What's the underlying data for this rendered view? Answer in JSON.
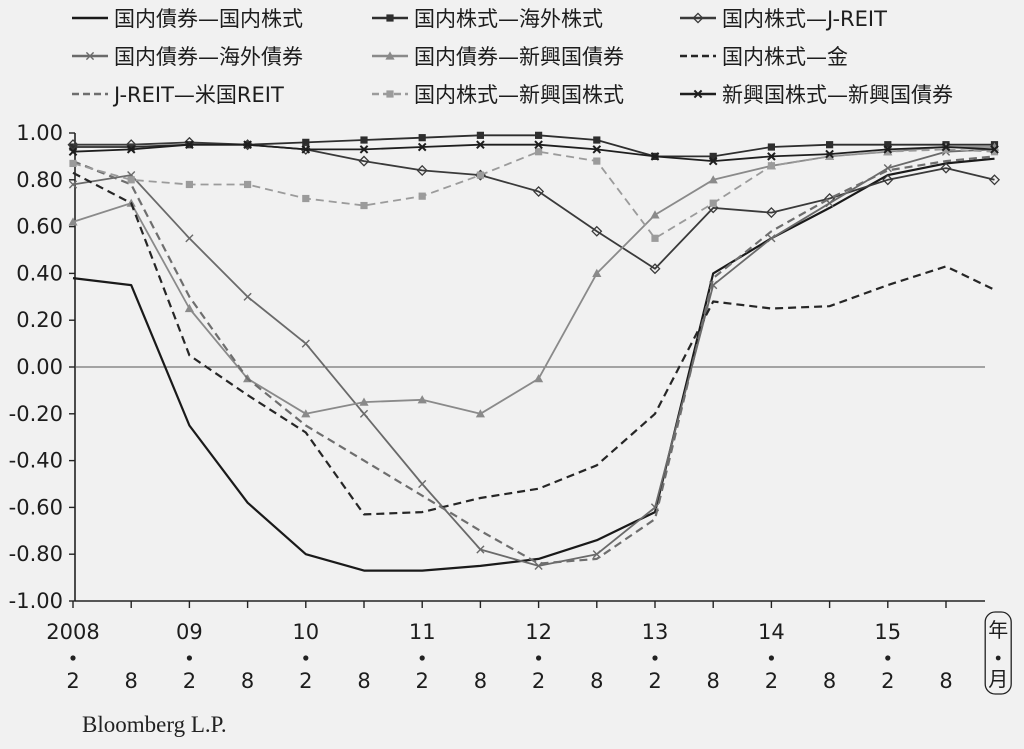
{
  "chart_data": {
    "type": "line",
    "title": "",
    "xlabel": "",
    "ylabel": "",
    "ylim": [
      -1.0,
      1.0
    ],
    "yticks": [
      "1.00",
      "0.80",
      "0.60",
      "0.40",
      "0.20",
      "0.00",
      "-0.20",
      "-0.40",
      "-0.60",
      "-0.80",
      "-1.00"
    ],
    "xticks": [
      {
        "year": "2008",
        "month": "2"
      },
      {
        "year": "",
        "month": "8"
      },
      {
        "year": "09",
        "month": "2"
      },
      {
        "year": "",
        "month": "8"
      },
      {
        "year": "10",
        "month": "2"
      },
      {
        "year": "",
        "month": "8"
      },
      {
        "year": "11",
        "month": "2"
      },
      {
        "year": "",
        "month": "8"
      },
      {
        "year": "12",
        "month": "2"
      },
      {
        "year": "",
        "month": "8"
      },
      {
        "year": "13",
        "month": "2"
      },
      {
        "year": "",
        "month": "8"
      },
      {
        "year": "14",
        "month": "2"
      },
      {
        "year": "",
        "month": "8"
      },
      {
        "year": "15",
        "month": "2"
      },
      {
        "year": "",
        "month": "8"
      }
    ],
    "x_unit_label": [
      "年",
      "月"
    ],
    "zero_line": true,
    "grid": false,
    "legend_position": "top",
    "source": "Bloomberg L.P.",
    "x": [
      "2008-02",
      "2008-08",
      "2009-02",
      "2009-08",
      "2010-02",
      "2010-08",
      "2011-02",
      "2011-08",
      "2012-02",
      "2012-08",
      "2013-02",
      "2013-08",
      "2014-02",
      "2014-08",
      "2015-02",
      "2015-08",
      "2016-01"
    ],
    "series": [
      {
        "name": "国内債券—国内株式",
        "color": "#1a1a1a",
        "style": "solid",
        "marker": "none",
        "values": [
          0.38,
          0.35,
          -0.25,
          -0.58,
          -0.8,
          -0.87,
          -0.87,
          -0.85,
          -0.82,
          -0.74,
          -0.62,
          0.4,
          0.55,
          0.68,
          0.82,
          0.87,
          0.89
        ]
      },
      {
        "name": "国内株式—海外株式",
        "color": "#2e2e2e",
        "style": "solid",
        "marker": "square",
        "values": [
          0.94,
          0.94,
          0.95,
          0.95,
          0.96,
          0.97,
          0.98,
          0.99,
          0.99,
          0.97,
          0.9,
          0.9,
          0.94,
          0.95,
          0.95,
          0.95,
          0.95
        ]
      },
      {
        "name": "国内株式—J-REIT",
        "color": "#3a3a3a",
        "style": "solid",
        "marker": "diamond",
        "values": [
          0.95,
          0.95,
          0.96,
          0.95,
          0.93,
          0.88,
          0.84,
          0.82,
          0.75,
          0.58,
          0.42,
          0.68,
          0.66,
          0.72,
          0.8,
          0.85,
          0.8
        ]
      },
      {
        "name": "国内債券—海外債券",
        "color": "#6a6a6a",
        "style": "solid",
        "marker": "x",
        "values": [
          0.78,
          0.82,
          0.55,
          0.3,
          0.1,
          -0.2,
          -0.5,
          -0.78,
          -0.85,
          -0.8,
          -0.6,
          0.35,
          0.55,
          0.7,
          0.85,
          0.92,
          0.93
        ]
      },
      {
        "name": "国内債券—新興国債券",
        "color": "#8a8a8a",
        "style": "solid",
        "marker": "triangle",
        "values": [
          0.62,
          0.7,
          0.25,
          -0.05,
          -0.2,
          -0.15,
          -0.14,
          -0.2,
          -0.05,
          0.4,
          0.65,
          0.8,
          0.86,
          0.9,
          0.92,
          0.94,
          0.94
        ]
      },
      {
        "name": "国内株式—金",
        "color": "#262626",
        "style": "dashed",
        "marker": "none",
        "values": [
          0.83,
          0.7,
          0.05,
          -0.12,
          -0.28,
          -0.63,
          -0.62,
          -0.56,
          -0.52,
          -0.42,
          -0.2,
          0.28,
          0.25,
          0.26,
          0.35,
          0.43,
          0.33
        ]
      },
      {
        "name": "J-REIT—米国REIT",
        "color": "#6e6e6e",
        "style": "dashed",
        "marker": "none",
        "values": [
          0.88,
          0.78,
          0.3,
          -0.05,
          -0.25,
          -0.4,
          -0.55,
          -0.7,
          -0.84,
          -0.82,
          -0.65,
          0.38,
          0.58,
          0.72,
          0.84,
          0.88,
          0.9
        ]
      },
      {
        "name": "国内株式—新興国株式",
        "color": "#9b9b9b",
        "style": "dashed",
        "marker": "square",
        "values": [
          0.87,
          0.8,
          0.78,
          0.78,
          0.72,
          0.69,
          0.73,
          0.82,
          0.92,
          0.88,
          0.55,
          0.7,
          0.86,
          0.9,
          0.92,
          0.93,
          0.92
        ]
      },
      {
        "name": "新興国株式—新興国債券",
        "color": "#1e1e1e",
        "style": "solid",
        "marker": "cross",
        "values": [
          0.92,
          0.93,
          0.95,
          0.95,
          0.93,
          0.93,
          0.94,
          0.95,
          0.95,
          0.93,
          0.9,
          0.88,
          0.9,
          0.91,
          0.93,
          0.94,
          0.93
        ]
      }
    ]
  }
}
